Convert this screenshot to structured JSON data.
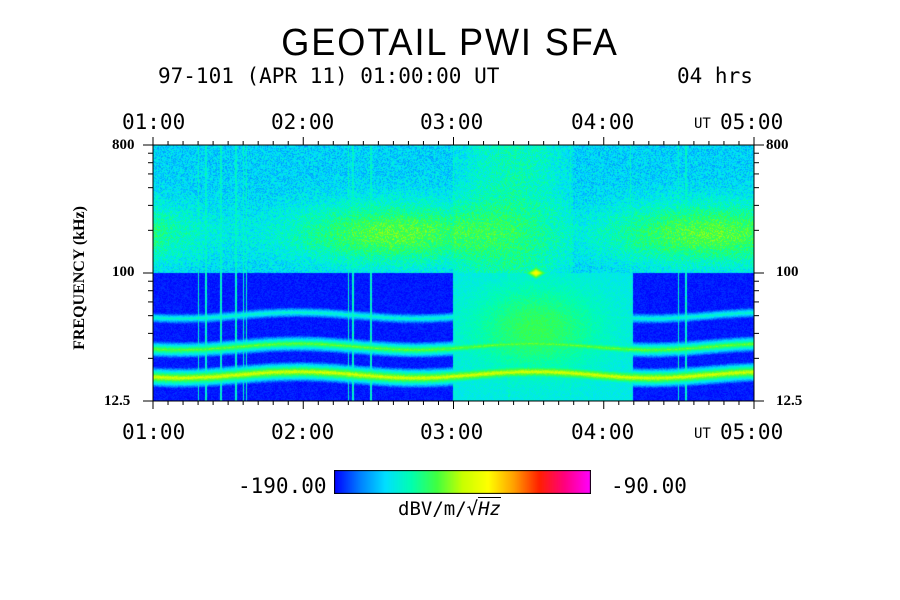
{
  "chart_data": {
    "type": "heatmap",
    "title": "GEOTAIL PWI SFA",
    "subtitle_date": "97-101 (APR 11) 01:00:00 UT",
    "subtitle_span": "04 hrs",
    "x_tick_labels": [
      "01:00",
      "02:00",
      "03:00",
      "04:00",
      "05:00"
    ],
    "x_unit_prefix": "UT",
    "x_range_hours_ut": [
      1,
      5
    ],
    "ylabel": "FREQUENCY (kHz)",
    "y_tick_labels": [
      "800",
      "100",
      "12.5"
    ],
    "y_range_khz": [
      12.5,
      800
    ],
    "y_scale": "log",
    "colorbar": {
      "min_label": "-190.00",
      "max_label": "-90.00",
      "unit_text": "dBV/m/",
      "unit_sqrt": "Hz",
      "range": [
        -190,
        -90
      ],
      "colors": [
        "#0000ff",
        "#0080ff",
        "#00e0ff",
        "#00ffb0",
        "#40ff40",
        "#c8ff00",
        "#ffff00",
        "#ffa000",
        "#ff2000",
        "#ff0080",
        "#ff00ff"
      ]
    },
    "emission_bands": [
      {
        "freq_khz": 50,
        "level_dbv": -165
      },
      {
        "freq_khz": 30,
        "level_dbv": -150
      },
      {
        "freq_khz": 19,
        "level_dbv": -140
      }
    ],
    "features": [
      {
        "time_ut": 3.55,
        "freq_khz": 100,
        "level_dbv": -125
      }
    ]
  }
}
